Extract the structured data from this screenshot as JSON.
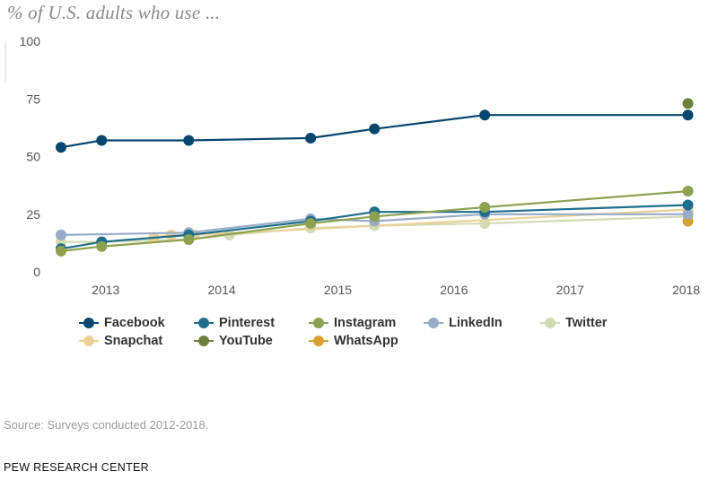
{
  "chart_data": {
    "type": "line",
    "title": "% of U.S. adults who use ...",
    "ylim": [
      0,
      100
    ],
    "yticks": [
      0,
      25,
      50,
      75,
      100
    ],
    "xlim": [
      2012.6,
      2018.05
    ],
    "xticks": [
      2013,
      2014,
      2015,
      2016,
      2017,
      2018
    ],
    "xtick_labels": [
      "2013",
      "2014",
      "2015",
      "2016",
      "2017",
      "2018"
    ],
    "ytick_labels": [
      "0",
      "25",
      "50",
      "75",
      "100"
    ],
    "series": [
      {
        "name": "Twitter",
        "color": "#d2dcb4",
        "x": [
          2012.6,
          2012.95,
          2013.7,
          2014.05,
          2014.75,
          2015.3,
          2016.25,
          2018.0
        ],
        "y": [
          13,
          13,
          14,
          16,
          19,
          20,
          21,
          24
        ]
      },
      {
        "name": "Snapchat",
        "color": "#ead297",
        "x": [
          2013.4,
          2013.55,
          2013.75,
          2018.0
        ],
        "y": [
          15,
          16,
          16,
          27
        ]
      },
      {
        "name": "WhatsApp",
        "color": "#d7a132",
        "x": [
          2018.0
        ],
        "y": [
          22
        ]
      },
      {
        "name": "LinkedIn",
        "color": "#98acc8",
        "x": [
          2012.6,
          2013.7,
          2014.75,
          2015.3,
          2016.25,
          2018.0
        ],
        "y": [
          16,
          17,
          23,
          22,
          25,
          25
        ]
      },
      {
        "name": "Pinterest",
        "color": "#1f6e8c",
        "x": [
          2012.6,
          2012.95,
          2013.7,
          2014.75,
          2015.3,
          2016.25,
          2018.0
        ],
        "y": [
          10,
          13,
          16,
          22,
          26,
          26,
          29
        ]
      },
      {
        "name": "Instagram",
        "color": "#8da150",
        "x": [
          2012.6,
          2012.95,
          2013.7,
          2014.75,
          2015.3,
          2016.25,
          2018.0
        ],
        "y": [
          9,
          11,
          14,
          21,
          24,
          28,
          35
        ]
      },
      {
        "name": "Facebook",
        "color": "#07466e",
        "x": [
          2012.6,
          2012.95,
          2013.7,
          2014.75,
          2015.3,
          2016.25,
          2018.0
        ],
        "y": [
          54,
          57,
          57,
          58,
          62,
          68,
          68
        ]
      },
      {
        "name": "YouTube",
        "color": "#6e7f3c",
        "x": [
          2018.0
        ],
        "y": [
          73
        ]
      }
    ]
  },
  "legend": {
    "row1": [
      {
        "label": "Facebook",
        "color": "#07466e"
      },
      {
        "label": "Pinterest",
        "color": "#1f6e8c"
      },
      {
        "label": "Instagram",
        "color": "#8da150"
      },
      {
        "label": "LinkedIn",
        "color": "#98acc8"
      },
      {
        "label": "Twitter",
        "color": "#d2dcb4"
      }
    ],
    "row2": [
      {
        "label": "Snapchat",
        "color": "#ead297"
      },
      {
        "label": "YouTube",
        "color": "#6e7f3c"
      },
      {
        "label": "WhatsApp",
        "color": "#d7a132"
      }
    ]
  },
  "footer": {
    "source": "Source: Surveys conducted 2012-2018.",
    "brand": "PEW RESEARCH CENTER"
  }
}
